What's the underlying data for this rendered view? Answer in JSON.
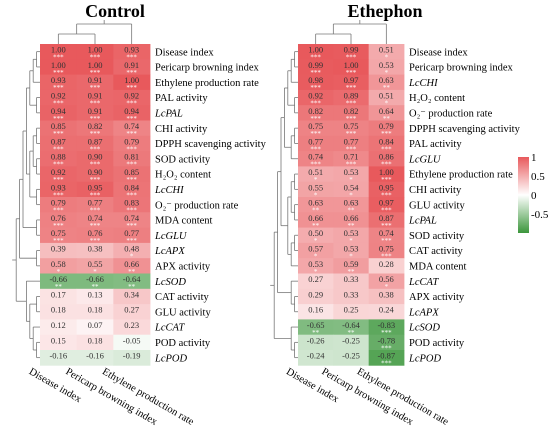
{
  "chart_data": [
    {
      "type": "heatmap",
      "title": "Control",
      "columns": [
        "Disease index",
        "Pericarp browning index",
        "Ethylene production rate"
      ],
      "rows": [
        "Disease index",
        "Pericarp browning index",
        "Ethylene production rate",
        "PAL activity",
        "LcPAL",
        "CHI activity",
        "DPPH scavenging activity",
        "SOD activity",
        "H₂O₂ content",
        "LcCHI",
        "O₂⁻ production rate",
        "MDA content",
        "LcGLU",
        "LcAPX",
        "APX activity",
        "LcSOD",
        "CAT activity",
        "GLU activity",
        "LcCAT",
        "POD activity",
        "LcPOD"
      ],
      "values": [
        [
          1.0,
          1.0,
          0.93
        ],
        [
          1.0,
          1.0,
          0.91
        ],
        [
          0.93,
          0.91,
          1.0
        ],
        [
          0.92,
          0.91,
          0.92
        ],
        [
          0.94,
          0.91,
          0.94
        ],
        [
          0.85,
          0.82,
          0.74
        ],
        [
          0.87,
          0.87,
          0.79
        ],
        [
          0.88,
          0.9,
          0.81
        ],
        [
          0.92,
          0.9,
          0.85
        ],
        [
          0.93,
          0.95,
          0.84
        ],
        [
          0.79,
          0.77,
          0.83
        ],
        [
          0.76,
          0.74,
          0.74
        ],
        [
          0.75,
          0.76,
          0.77
        ],
        [
          0.39,
          0.38,
          0.48
        ],
        [
          0.58,
          0.55,
          0.66
        ],
        [
          -0.66,
          -0.66,
          -0.64
        ],
        [
          0.17,
          0.13,
          0.34
        ],
        [
          0.18,
          0.18,
          0.27
        ],
        [
          0.12,
          0.07,
          0.23
        ],
        [
          0.15,
          0.18,
          -0.05
        ],
        [
          -0.16,
          -0.16,
          -0.19
        ]
      ],
      "significance": [
        [
          "***",
          "***",
          "***"
        ],
        [
          "***",
          "***",
          "***"
        ],
        [
          "***",
          "***",
          "***"
        ],
        [
          "***",
          "***",
          "***"
        ],
        [
          "***",
          "***",
          "***"
        ],
        [
          "***",
          "***",
          "***"
        ],
        [
          "***",
          "***",
          "***"
        ],
        [
          "***",
          "***",
          "***"
        ],
        [
          "***",
          "***",
          "***"
        ],
        [
          "***",
          "***",
          "***"
        ],
        [
          "***",
          "***",
          "***"
        ],
        [
          "***",
          "***",
          "***"
        ],
        [
          "***",
          "***",
          "***"
        ],
        [
          "",
          "",
          "*"
        ],
        [
          "*",
          "*",
          "**"
        ],
        [
          "**",
          "**",
          "**"
        ],
        [
          "",
          "",
          ""
        ],
        [
          "",
          "",
          ""
        ],
        [
          "",
          "",
          ""
        ],
        [
          "",
          "",
          ""
        ],
        [
          "",
          "",
          ""
        ]
      ],
      "row_clusters": [
        [
          [
            [
              [
                [
                  [
                    0,
                    1
                  ],
                  2
                ],
                [
                  3,
                  4
                ]
              ],
              [
                [
                  [
                    5,
                    6
                  ],
                  [
                    7,
                    8
                  ]
                ],
                [
                  9,
                  10
                ]
              ]
            ],
            [
              11,
              12
            ]
          ],
          [
            13,
            14
          ]
        ],
        [
          15,
          [
            [
              16,
              17
            ],
            [
              18,
              [
                19,
                20
              ]
            ]
          ]
        ]
      ],
      "column_clusters": [
        [
          0,
          1
        ],
        2
      ]
    },
    {
      "type": "heatmap",
      "title": "Ethephon",
      "columns": [
        "Disease index",
        "Pericarp browning index",
        "Ethylene production rate"
      ],
      "rows": [
        "Disease index",
        "Pericarp browning index",
        "LcCHI",
        "H₂O₂ content",
        "O₂⁻ production rate",
        "DPPH scavenging activity",
        "PAL activity",
        "LcGLU",
        "Ethylene production rate",
        "CHI activity",
        "GLU activity",
        "LcPAL",
        "SOD activity",
        "CAT activity",
        "MDA content",
        "LcCAT",
        "APX activity",
        "LcAPX",
        "LcSOD",
        "POD activity",
        "LcPOD"
      ],
      "values": [
        [
          1.0,
          0.99,
          0.51
        ],
        [
          0.99,
          1.0,
          0.53
        ],
        [
          0.98,
          0.97,
          0.63
        ],
        [
          0.92,
          0.89,
          0.51
        ],
        [
          0.82,
          0.82,
          0.64
        ],
        [
          0.75,
          0.75,
          0.79
        ],
        [
          0.77,
          0.77,
          0.84
        ],
        [
          0.74,
          0.71,
          0.86
        ],
        [
          0.51,
          0.53,
          1.0
        ],
        [
          0.55,
          0.54,
          0.95
        ],
        [
          0.63,
          0.63,
          0.97
        ],
        [
          0.66,
          0.66,
          0.87
        ],
        [
          0.5,
          0.53,
          0.74
        ],
        [
          0.57,
          0.53,
          0.75
        ],
        [
          0.53,
          0.59,
          0.28
        ],
        [
          0.27,
          0.33,
          0.56
        ],
        [
          0.29,
          0.33,
          0.38
        ],
        [
          0.16,
          0.25,
          0.24
        ],
        [
          -0.65,
          -0.64,
          -0.83
        ],
        [
          -0.26,
          -0.25,
          -0.78
        ],
        [
          -0.24,
          -0.25,
          -0.87
        ]
      ],
      "significance": [
        [
          "***",
          "***",
          "*"
        ],
        [
          "***",
          "***",
          "*"
        ],
        [
          "***",
          "***",
          "**"
        ],
        [
          "***",
          "***",
          "*"
        ],
        [
          "***",
          "***",
          "**"
        ],
        [
          "***",
          "***",
          "***"
        ],
        [
          "***",
          "***",
          "***"
        ],
        [
          "***",
          "***",
          "***"
        ],
        [
          "*",
          "*",
          "***"
        ],
        [
          "*",
          "*",
          "***"
        ],
        [
          "**",
          "**",
          "***"
        ],
        [
          "**",
          "**",
          "***"
        ],
        [
          "*",
          "*",
          "***"
        ],
        [
          "*",
          "*",
          "***"
        ],
        [
          "*",
          "**",
          ""
        ],
        [
          "",
          "",
          "*"
        ],
        [
          "",
          "",
          ""
        ],
        [
          "",
          "",
          ""
        ],
        [
          "**",
          "**",
          "***"
        ],
        [
          "",
          "",
          "***"
        ],
        [
          "",
          "",
          "***"
        ]
      ],
      "row_clusters": [
        [
          [
            [
              [
                [
                  [
                    0,
                    1
                  ],
                  2
                ],
                [
                  3,
                  4
                ]
              ],
              [
                [
                  5,
                  6
                ],
                7
              ]
            ],
            [
              [
                [
                  8,
                  9
                ],
                [
                  10,
                  11
                ]
              ],
              [
                [
                  12,
                  13
                ],
                14
              ]
            ]
          ],
          [
            15,
            [
              16,
              17
            ]
          ]
        ],
        [
          18,
          [
            19,
            20
          ]
        ]
      ],
      "column_clusters": [
        [
          0,
          1
        ],
        2
      ]
    }
  ],
  "legend": {
    "ticks": [
      1,
      0.5,
      0,
      -0.5
    ],
    "range": [
      -1,
      1
    ]
  },
  "colors": {
    "positive": "#E8595C",
    "zero": "#FFFFFF",
    "negative": "#3C963C"
  }
}
